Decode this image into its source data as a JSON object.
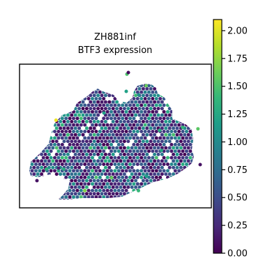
{
  "chart_data": {
    "type": "scatter",
    "title_lines": [
      "ZH881inf",
      "BTF3 expression"
    ],
    "xlabel": "",
    "ylabel": "",
    "grid": false,
    "colormap": "viridis",
    "colorbar": {
      "range": [
        0.0,
        2.1
      ],
      "ticks": [
        "0.00",
        "0.25",
        "0.50",
        "0.75",
        "1.00",
        "1.25",
        "1.50",
        "1.75",
        "2.00"
      ]
    },
    "highlights": [
      {
        "x": 0.56,
        "y": 0.93,
        "value": 1.5
      },
      {
        "x": 0.66,
        "y": 0.85,
        "value": 1.6
      },
      {
        "x": 0.44,
        "y": 0.66,
        "value": 1.2
      },
      {
        "x": 0.19,
        "y": 0.61,
        "value": 2.05
      },
      {
        "x": 0.14,
        "y": 0.27,
        "value": 1.35
      },
      {
        "x": 0.34,
        "y": 0.12,
        "value": 1.7
      },
      {
        "x": 0.85,
        "y": 0.56,
        "value": 1.4
      },
      {
        "x": 0.73,
        "y": 0.54,
        "value": 1.3
      },
      {
        "x": 0.93,
        "y": 0.55,
        "value": 1.55
      },
      {
        "x": 0.48,
        "y": 0.21,
        "value": 1.6
      },
      {
        "x": 0.74,
        "y": 0.4,
        "value": 1.25
      },
      {
        "x": 0.23,
        "y": 0.27,
        "value": 1.3
      },
      {
        "x": 0.62,
        "y": 0.12,
        "value": 1.4
      },
      {
        "x": 0.66,
        "y": 0.22,
        "value": 1.2
      }
    ]
  },
  "colors": {
    "frame": "#000000",
    "viridis": [
      "#440154",
      "#482878",
      "#3e4989",
      "#31688e",
      "#26828e",
      "#1f9e89",
      "#35b779",
      "#6ece58",
      "#b5de2b",
      "#fde725"
    ]
  }
}
